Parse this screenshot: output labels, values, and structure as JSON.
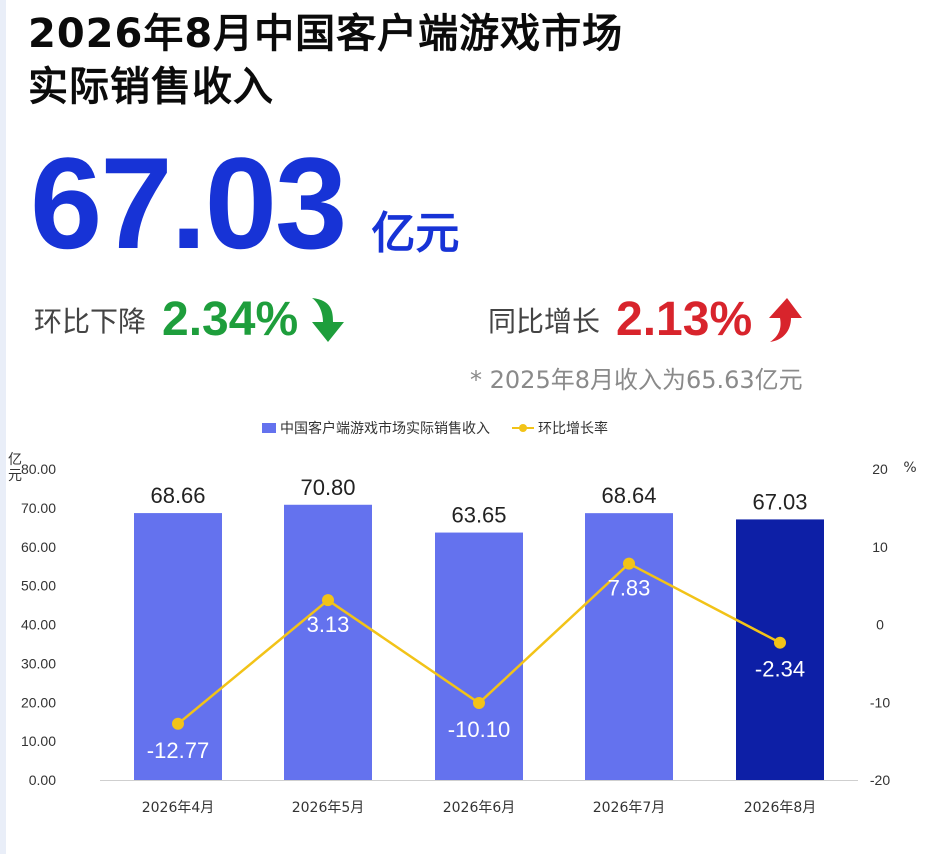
{
  "header": {
    "title_line1": "2026年8月中国客户端游戏市场",
    "title_line2": "实际销售收入",
    "revenue_value": "67.03",
    "revenue_unit": "亿元"
  },
  "stats": {
    "mom_label": "环比下降",
    "mom_value": "2.34%",
    "mom_color": "#1e9e3c",
    "yoy_label": "同比增长",
    "yoy_value": "2.13%",
    "yoy_color": "#d8242c",
    "note": "* 2025年8月收入为65.63亿元"
  },
  "colors": {
    "bar": "#6472ee",
    "bar_highlight": "#0d1fa6",
    "line": "#f2c318",
    "headline_blue": "#1733d6"
  },
  "chart_data": {
    "type": "bar",
    "legend_position": "top-center",
    "grid": false,
    "categories": [
      "2026年4月",
      "2026年5月",
      "2026年6月",
      "2026年7月",
      "2026年8月"
    ],
    "series": [
      {
        "name": "中国客户端游戏市场实际销售收入",
        "type": "bar",
        "axis": "left",
        "values": [
          68.66,
          70.8,
          63.65,
          68.64,
          67.03
        ],
        "labels": [
          "68.66",
          "70.80",
          "63.65",
          "68.64",
          "67.03"
        ]
      },
      {
        "name": "环比增长率",
        "type": "line",
        "axis": "right",
        "values": [
          -12.77,
          3.13,
          -10.1,
          7.83,
          -2.34
        ],
        "labels": [
          "-12.77",
          "3.13",
          "-10.10",
          "7.83",
          "-2.34"
        ]
      }
    ],
    "ylabel_left": "亿元",
    "ylim_left": [
      0,
      80
    ],
    "yticks_left": [
      "0.00",
      "10.00",
      "20.00",
      "30.00",
      "40.00",
      "50.00",
      "60.00",
      "70.00",
      "80.00"
    ],
    "ylabel_right": "%",
    "ylim_right": [
      -20,
      20
    ],
    "yticks_right": [
      "-20",
      "-10",
      "0",
      "10",
      "20"
    ],
    "highlight_index": 4
  }
}
